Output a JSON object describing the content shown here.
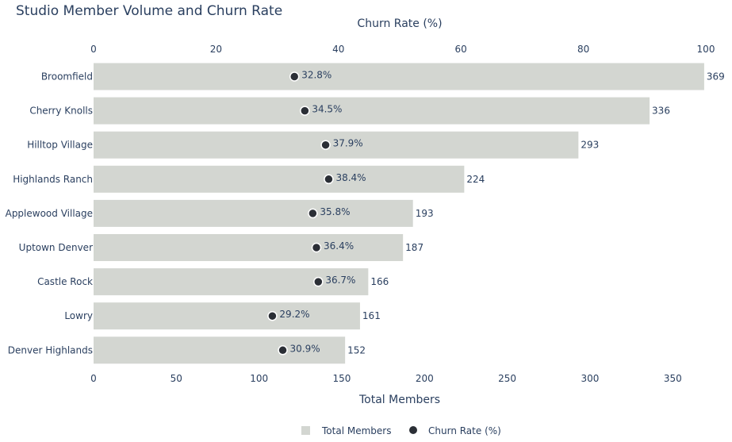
{
  "chart_data": {
    "type": "bar",
    "orientation": "horizontal",
    "title": "Studio Member Volume and Churn Rate",
    "categories": [
      "Broomfield",
      "Cherry Knolls",
      "Hilltop Village",
      "Highlands Ranch",
      "Applewood Village",
      "Uptown Denver",
      "Castle Rock",
      "Lowry",
      "Denver Highlands"
    ],
    "series": [
      {
        "name": "Total Members",
        "type": "bar",
        "values": [
          369,
          336,
          293,
          224,
          193,
          187,
          166,
          161,
          152
        ],
        "labels": [
          "369",
          "336",
          "293",
          "224",
          "193",
          "187",
          "166",
          "161",
          "152"
        ],
        "color": "#d3d6d1"
      },
      {
        "name": "Churn Rate (%)",
        "type": "scatter",
        "values": [
          32.8,
          34.5,
          37.9,
          38.4,
          35.8,
          36.4,
          36.7,
          29.2,
          30.9
        ],
        "labels": [
          "32.8%",
          "34.5%",
          "37.9%",
          "38.4%",
          "35.8%",
          "36.4%",
          "36.7%",
          "29.2%",
          "30.9%"
        ],
        "color": "#2b2f36"
      }
    ],
    "xaxis_bottom": {
      "label": "Total Members",
      "range": [
        0,
        370
      ],
      "ticks": [
        0,
        50,
        100,
        150,
        200,
        250,
        300,
        350
      ],
      "tick_labels": [
        "0",
        "50",
        "100",
        "150",
        "200",
        "250",
        "300",
        "350"
      ]
    },
    "xaxis_top": {
      "label": "Churn Rate (%)",
      "range": [
        0,
        100
      ],
      "ticks": [
        0,
        20,
        40,
        60,
        80,
        100
      ],
      "tick_labels": [
        "0",
        "20",
        "40",
        "60",
        "80",
        "100"
      ]
    },
    "grid": false,
    "legend_placement": "bottom-center"
  }
}
